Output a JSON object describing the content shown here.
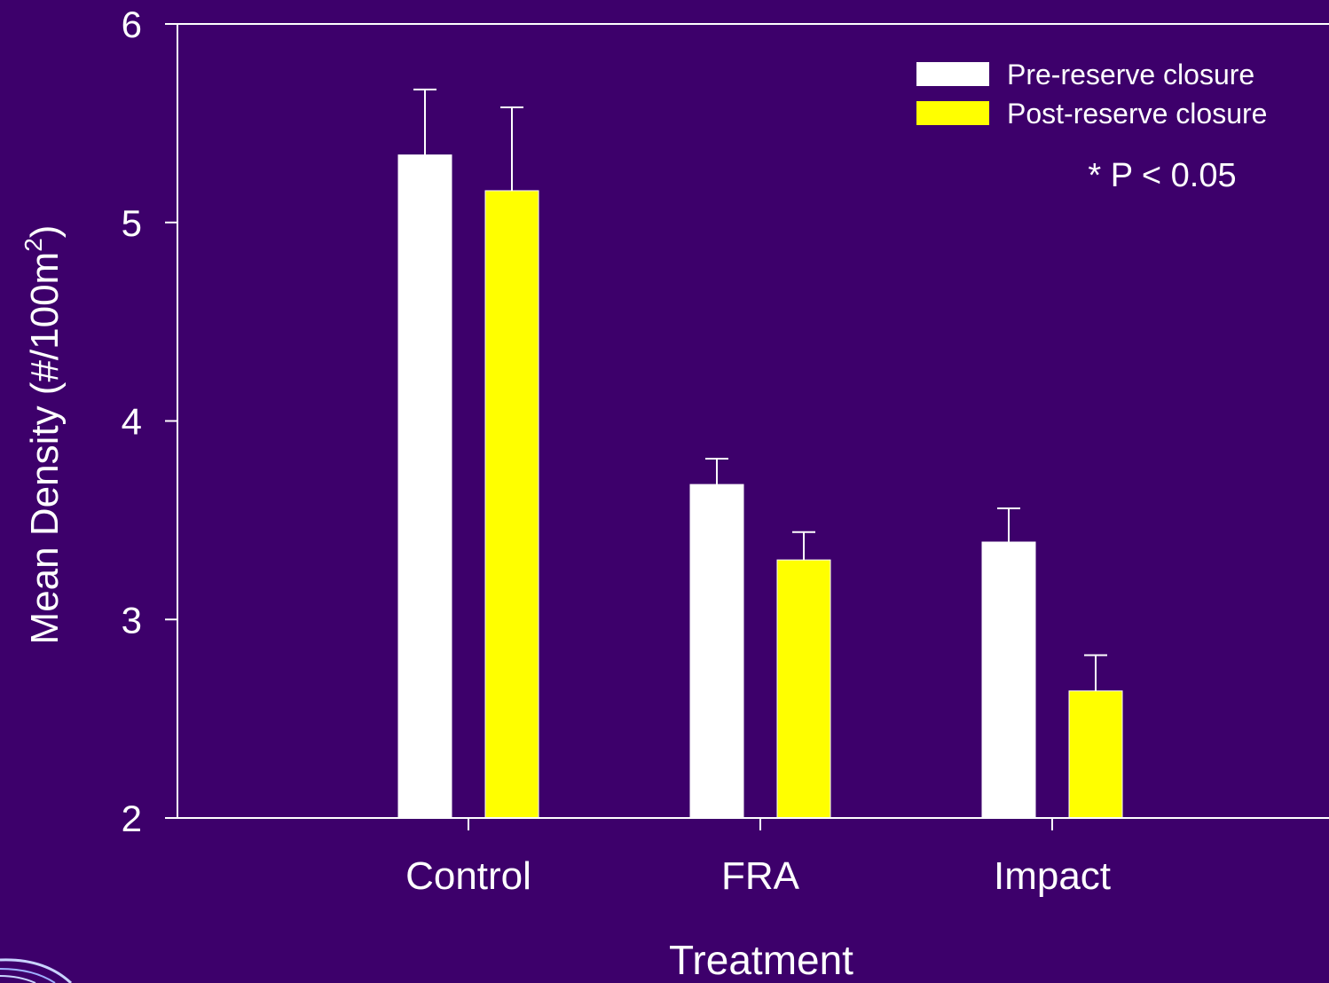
{
  "colors": {
    "background": "#3d006b",
    "axis": "#ffffff",
    "pre": "#ffffff",
    "post": "#ffff00"
  },
  "chart_data": {
    "type": "bar",
    "xlabel": "Treatment",
    "ylabel_main": "Mean Density (#/100m",
    "ylabel_sup": "2",
    "ylabel_end": ")",
    "ylim": [
      2,
      6
    ],
    "yticks": [
      "2",
      "3",
      "4",
      "5",
      "6"
    ],
    "categories": [
      "Control",
      "FRA",
      "Impact"
    ],
    "series": [
      {
        "name": "Pre-reserve closure",
        "color": "#ffffff",
        "values": [
          5.34,
          3.68,
          3.39
        ],
        "errors": [
          0.33,
          0.13,
          0.17
        ]
      },
      {
        "name": "Post-reserve closure",
        "color": "#ffff00",
        "values": [
          5.16,
          3.3,
          2.64
        ],
        "errors": [
          0.42,
          0.14,
          0.18
        ]
      }
    ],
    "annotation": "* P < 0.05",
    "legend_position": "top-right",
    "grid": false
  }
}
